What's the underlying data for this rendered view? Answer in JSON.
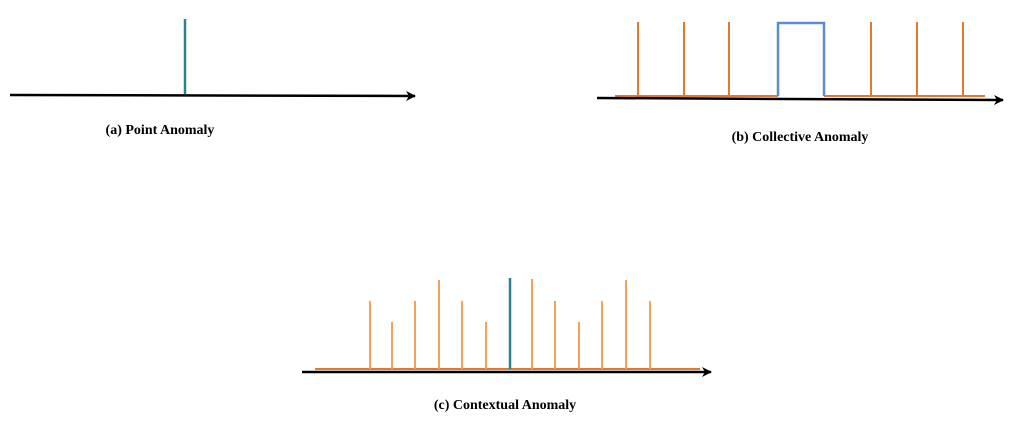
{
  "captions": {
    "a": "(a) Point Anomaly",
    "b": "(b) Collective Anomaly",
    "c": "(c) Contextual Anomaly"
  }
}
